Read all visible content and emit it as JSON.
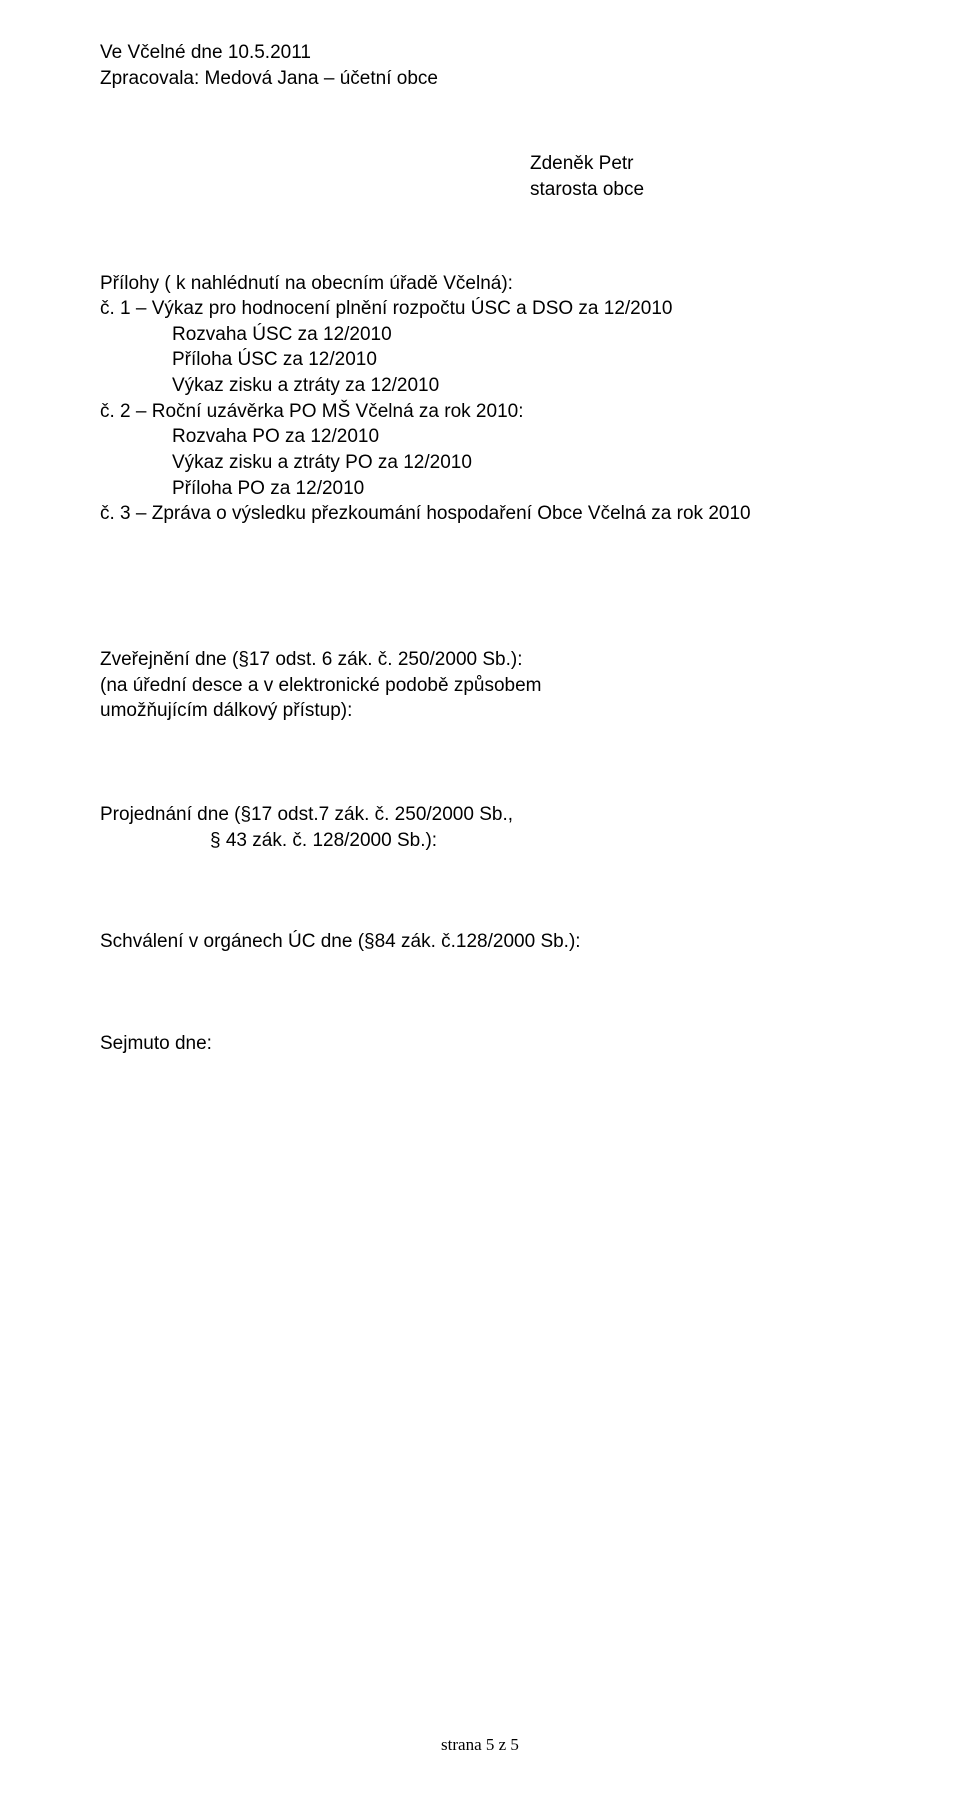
{
  "header": {
    "line1": "Ve Včelné dne 10.5.2011",
    "line2": "Zpracovala: Medová Jana – účetní obce"
  },
  "signature": {
    "name": "Zdeněk Petr",
    "role": "starosta obce"
  },
  "attachments": {
    "heading": "Přílohy ( k nahlédnutí na obecním úřadě Včelná):",
    "item1_lead": "č. 1 – Výkaz pro hodnocení plnění rozpočtu ÚSC a DSO za 12/2010",
    "item1_lines": [
      "Rozvaha ÚSC za 12/2010",
      "Příloha ÚSC za 12/2010",
      "Výkaz zisku a ztráty za 12/2010"
    ],
    "item2_lead": "č. 2 – Roční uzávěrka PO MŠ Včelná za rok 2010:",
    "item2_lines": [
      "Rozvaha PO za 12/2010",
      "Výkaz zisku a ztráty PO za 12/2010",
      "Příloha PO za 12/2010"
    ],
    "item3_lead": "č. 3 – Zpráva o výsledku přezkoumání hospodaření Obce Včelná za rok 2010"
  },
  "publication": {
    "line1": "Zveřejnění dne (§17 odst. 6 zák. č. 250/2000 Sb.):",
    "line2": "(na úřední desce a v elektronické podobě způsobem",
    "line3": "umožňujícím dálkový přístup):"
  },
  "discussion": {
    "line1": "Projednání dne (§17 odst.7 zák. č. 250/2000 Sb.,",
    "line2": "§ 43 zák. č. 128/2000 Sb.):"
  },
  "approval": {
    "line1": "Schválení v orgánech ÚC dne (§84 zák. č.128/2000 Sb.):"
  },
  "removed": {
    "line1": "Sejmuto dne:"
  },
  "footer": {
    "text": "strana 5 z 5"
  }
}
